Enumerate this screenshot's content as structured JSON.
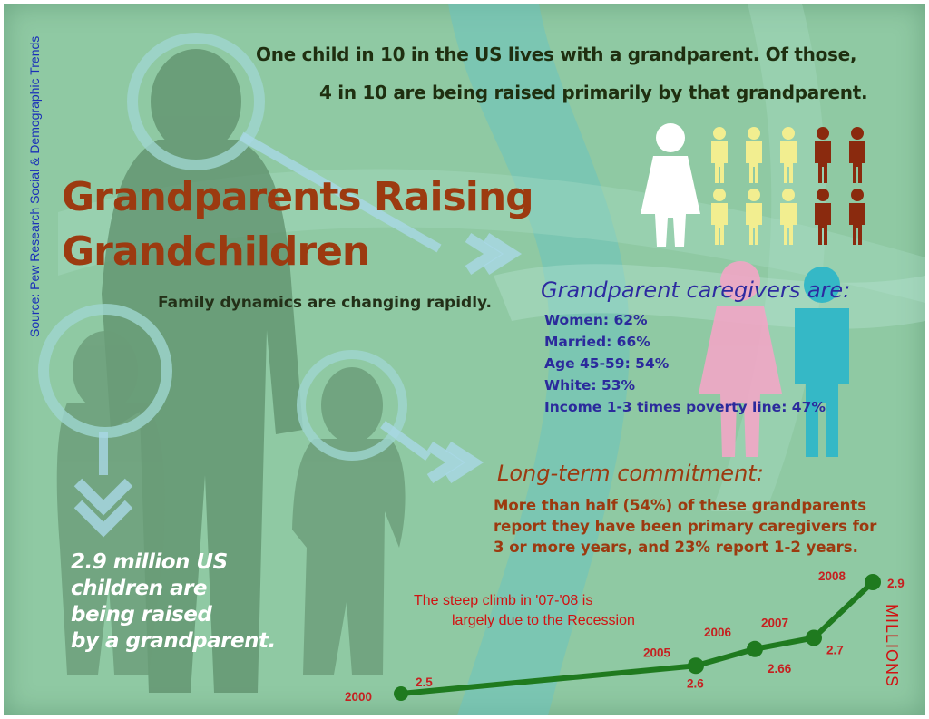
{
  "source_label": "Source: Pew Research Social & Demographic Trends",
  "headline": {
    "line1": "One child in 10 in the US lives with a grandparent. Of those,",
    "line2": "4 in 10 are being raised primarily by that grandparent."
  },
  "title": {
    "line1": "Grandparents Raising",
    "line2": "Grandchildren"
  },
  "subtitle": "Family dynamics are changing rapidly.",
  "caregivers": {
    "heading": "Grandparent caregivers are:",
    "items": [
      "Women: 62%",
      "Married: 66%",
      "Age 45-59: 54%",
      "White: 53%",
      "Income 1-3 times poverty line: 47%"
    ]
  },
  "long_term": {
    "heading": "Long-term commitment:",
    "lines": [
      "More than half (54%) of these grandparents",
      "report they have been primary caregivers for",
      "3 or more years, and 23% report 1-2 years."
    ]
  },
  "big_stat": {
    "lines": [
      "2.9 million US",
      "children are",
      "being raised",
      "by a grandparent."
    ]
  },
  "chart_note": {
    "line1": "The steep climb in '07-'08 is",
    "line2": "largely due to the Recession"
  },
  "units_label": "MILLIONS",
  "pictogram": {
    "total": 10,
    "raised_primarily": 4
  },
  "colors": {
    "background": "#8fc9a3",
    "title": "#9c3a10",
    "caregivers_text": "#2b2a9c",
    "chart_line": "#1f7a1f",
    "chart_labels": "#c62020",
    "child_icon_light": "#f2ee90",
    "child_icon_dark": "#8a2a0e",
    "woman_icon": "#f2a6c6",
    "man_icon": "#35b8c6"
  },
  "chart_data": {
    "type": "line",
    "x": [
      2000,
      2005,
      2006,
      2007,
      2008
    ],
    "values": [
      2.5,
      2.6,
      2.66,
      2.7,
      2.9
    ],
    "value_labels": [
      "2.5",
      "2.6",
      "2.66",
      "2.7",
      "2.9"
    ],
    "year_labels": [
      "2000",
      "2005",
      "2006",
      "2007",
      "2008"
    ],
    "ylabel": "MILLIONS",
    "title": "",
    "xlabel": ""
  }
}
